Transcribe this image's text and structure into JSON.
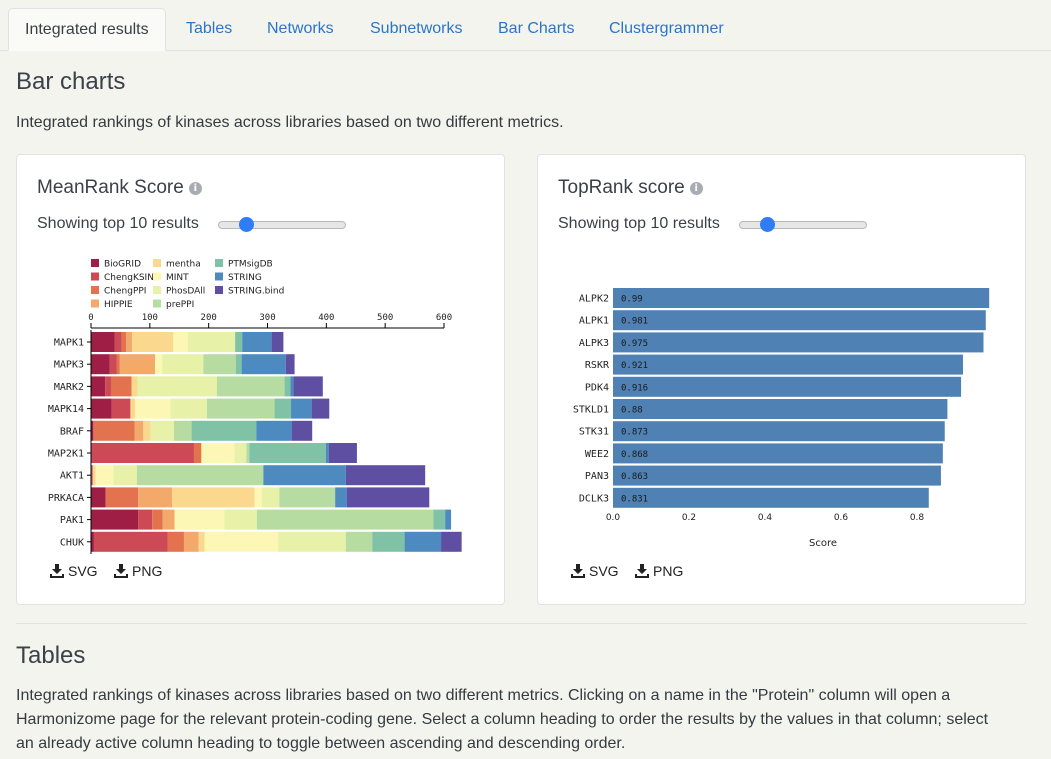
{
  "tabs": [
    {
      "label": "Integrated results",
      "active": true
    },
    {
      "label": "Tables"
    },
    {
      "label": "Networks"
    },
    {
      "label": "Subnetworks"
    },
    {
      "label": "Bar Charts"
    },
    {
      "label": "Clustergrammer"
    }
  ],
  "barcharts_section": {
    "title": "Bar charts",
    "description": "Integrated rankings of kinases across libraries based on two different metrics."
  },
  "meanrank_card": {
    "title": "MeanRank Score",
    "showing": "Showing top 10 results",
    "slider_value": 10,
    "svg_label": "SVG",
    "png_label": "PNG"
  },
  "toprank_card": {
    "title": "TopRank score",
    "showing": "Showing top 10 results",
    "slider_value": 10,
    "svg_label": "SVG",
    "png_label": "PNG"
  },
  "tables_section": {
    "title": "Tables",
    "description_lines": [
      "Integrated rankings of kinases across libraries based on two different metrics. Clicking on a name in the \"Protein\" column will open a",
      "Harmonizome page for the relevant protein-coding gene. Select a column heading to order the results by the values in that column; select",
      "an already active column heading to toggle between ascending and descending order."
    ]
  },
  "chart_data": [
    {
      "type": "bar",
      "orientation": "horizontal",
      "stacked": true,
      "title": "",
      "xlabel": "",
      "ylabel": "",
      "xlim": [
        0,
        600
      ],
      "xticks": [
        0,
        100,
        200,
        300,
        400,
        500,
        600
      ],
      "legend_position": "top",
      "categories": [
        "MAPK1",
        "MAPK3",
        "MARK2",
        "MAPK14",
        "BRAF",
        "MAP2K1",
        "AKT1",
        "PRKACA",
        "PAK1",
        "CHUK"
      ],
      "series": [
        {
          "name": "BioGRID",
          "color": "#9e1e46",
          "values": [
            40,
            32,
            24,
            35,
            4,
            0,
            1,
            25,
            80,
            5
          ]
        },
        {
          "name": "ChengKSIN",
          "color": "#cc4a55",
          "values": [
            12,
            12,
            10,
            32,
            0,
            175,
            2,
            0,
            24,
            125
          ]
        },
        {
          "name": "ChengPPI",
          "color": "#e3734e",
          "values": [
            8,
            5,
            35,
            0,
            70,
            12,
            0,
            55,
            18,
            28
          ]
        },
        {
          "name": "HIPPIE",
          "color": "#f2a96a",
          "values": [
            10,
            60,
            0,
            0,
            15,
            0,
            0,
            58,
            20,
            25
          ]
        },
        {
          "name": "mentha",
          "color": "#fad98f",
          "values": [
            70,
            0,
            10,
            8,
            12,
            2,
            5,
            140,
            0,
            10
          ]
        },
        {
          "name": "MINT",
          "color": "#fdf7b5",
          "values": [
            25,
            12,
            0,
            60,
            0,
            55,
            30,
            12,
            85,
            125
          ]
        },
        {
          "name": "PhosDAll",
          "color": "#e7f1a8",
          "values": [
            80,
            70,
            135,
            62,
            40,
            20,
            40,
            30,
            55,
            115
          ]
        },
        {
          "name": "prePPI",
          "color": "#b7dca2",
          "values": [
            0,
            55,
            115,
            115,
            30,
            5,
            215,
            95,
            300,
            45
          ]
        },
        {
          "name": "PTMsigDB",
          "color": "#7fc2a5",
          "values": [
            12,
            10,
            10,
            28,
            110,
            130,
            0,
            0,
            20,
            55
          ]
        },
        {
          "name": "STRING",
          "color": "#4c8abf",
          "values": [
            50,
            75,
            5,
            35,
            60,
            5,
            140,
            20,
            10,
            62
          ]
        },
        {
          "name": "STRING.bind",
          "color": "#5e4fa2",
          "values": [
            20,
            15,
            50,
            30,
            35,
            48,
            135,
            140,
            0,
            35
          ]
        }
      ]
    },
    {
      "type": "bar",
      "orientation": "horizontal",
      "title": "",
      "xlabel": "Score",
      "ylabel": "",
      "xlim": [
        0,
        1
      ],
      "xticks": [
        "0.0",
        "0.2",
        "0.4",
        "0.6",
        "0.8"
      ],
      "bar_color": "#4f81b5",
      "categories": [
        "ALPK2",
        "ALPK1",
        "ALPK3",
        "RSKR",
        "PDK4",
        "STKLD1",
        "STK31",
        "WEE2",
        "PAN3",
        "DCLK3"
      ],
      "values": [
        0.99,
        0.981,
        0.975,
        0.921,
        0.916,
        0.88,
        0.873,
        0.868,
        0.863,
        0.831
      ],
      "value_labels": [
        "0.99",
        "0.981",
        "0.975",
        "0.921",
        "0.916",
        "0.88",
        "0.873",
        "0.868",
        "0.863",
        "0.831"
      ]
    }
  ]
}
